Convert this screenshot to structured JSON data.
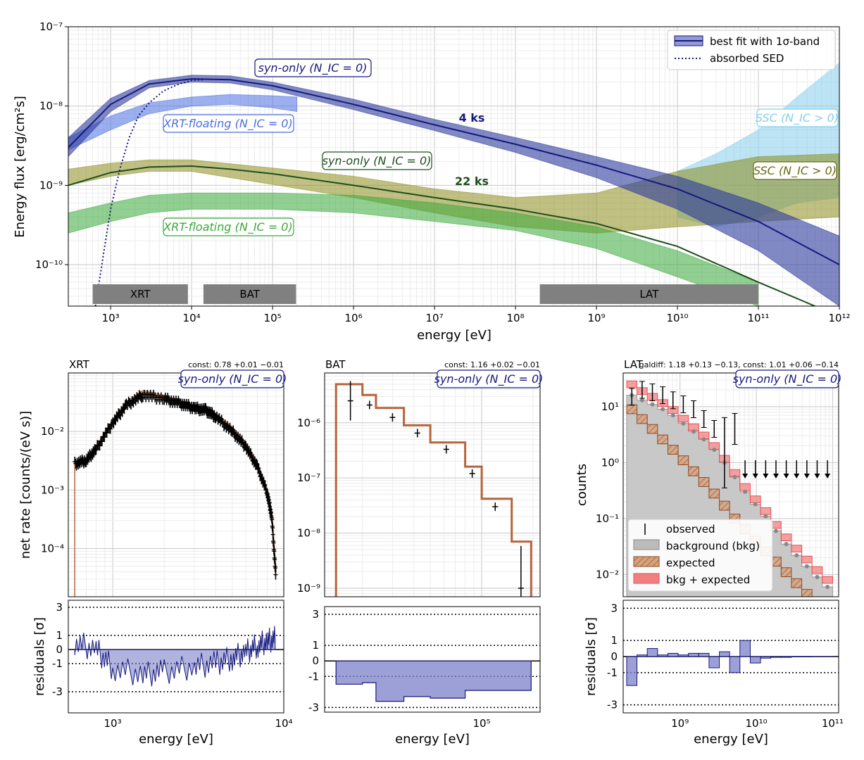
{
  "colors": {
    "navy": "#16197c",
    "blue_band": "#4a6ee0",
    "light_blue_band": "#87ceeb",
    "olive_band": "#8c8c1e",
    "green_band": "#38a838",
    "dark_green": "#1c4f1c",
    "brown": "#b5653b",
    "red_band": "#e85050",
    "grey_bkg": "#aaaaaa",
    "residual_fill": "#7b80c8"
  },
  "main": {
    "xlabel": "energy [eV]",
    "ylabel": "Energy flux [erg/cm²s]",
    "x_ticks": [
      "10³",
      "10⁴",
      "10⁵",
      "10⁶",
      "10⁷",
      "10⁸",
      "10⁹",
      "10¹⁰",
      "10¹¹",
      "10¹²"
    ],
    "y_ticks": [
      "10⁻⁷",
      "10⁻⁸",
      "10⁻⁹",
      "10⁻¹⁰"
    ],
    "legend": [
      "best fit with 1σ-band",
      "absorbed SED"
    ],
    "annotations": {
      "syn_4ks": "syn-only (N_IC = 0)",
      "xrt_4ks": "XRT-floating (N_IC = 0)",
      "label_4ks": "4 ks",
      "ssc_4ks": "SSC (N_IC > 0)",
      "syn_22ks": "syn-only (N_IC = 0)",
      "label_22ks": "22 ks",
      "ssc_22ks": "SSC (N_IC > 0)",
      "xrt_22ks": "XRT-floating (N_IC = 0)"
    },
    "instrument_bars": [
      {
        "name": "XRT",
        "range_eV": [
          600,
          9000
        ]
      },
      {
        "name": "BAT",
        "range_eV": [
          14000,
          195000
        ]
      },
      {
        "name": "LAT",
        "range_eV": [
          200000000,
          100000000000
        ]
      }
    ]
  },
  "chart_data": [
    {
      "type": "line",
      "title": "",
      "xlabel": "energy [eV]",
      "ylabel": "Energy flux [erg/cm²s]",
      "xscale": "log",
      "yscale": "log",
      "xlim": [
        300,
        1000000000000
      ],
      "ylim": [
        3e-11,
        1e-07
      ],
      "grid": true,
      "legend": "top-right",
      "series": [
        {
          "name": "syn-only 4 ks best fit",
          "x": [
            300,
            1000,
            3000,
            10000,
            30000,
            100000,
            1000000,
            10000000,
            100000000,
            1000000000,
            10000000000,
            100000000000,
            1000000000000
          ],
          "y": [
            3e-09,
            1.05e-08,
            1.9e-08,
            2.2e-08,
            2.15e-08,
            1.8e-08,
            1.05e-08,
            5.8e-09,
            3.3e-09,
            1.8e-09,
            9e-10,
            3.5e-10,
            1e-10
          ]
        },
        {
          "name": "syn-only 4 ks band",
          "x": [
            300,
            1000,
            3000,
            10000,
            30000,
            100000,
            1000000,
            10000000,
            100000000,
            1000000000,
            10000000000,
            100000000000,
            1000000000000
          ],
          "lower": [
            2.3e-09,
            8.5e-09,
            1.7e-08,
            2e-08,
            1.95e-08,
            1.6e-08,
            9e-09,
            4.9e-09,
            2.6e-09,
            1.25e-09,
            5e-10,
            1.5e-10,
            3e-11
          ],
          "upper": [
            4e-09,
            1.25e-08,
            2.1e-08,
            2.45e-08,
            2.4e-08,
            2e-08,
            1.22e-08,
            6.8e-09,
            4e-09,
            2.3e-09,
            1.3e-09,
            6e-10,
            2.3e-10
          ]
        },
        {
          "name": "absorbed SED",
          "x": [
            650,
            800,
            1000,
            1300,
            1700,
            2200,
            3000,
            4500,
            7000,
            10000,
            14000
          ],
          "y": [
            3e-11,
            1.2e-10,
            5e-10,
            1.6e-09,
            4e-09,
            7.5e-09,
            1.1e-08,
            1.55e-08,
            1.9e-08,
            2.1e-08,
            2.15e-08
          ]
        },
        {
          "name": "XRT-floating 4 ks band",
          "x": [
            300,
            1000,
            3000,
            10000,
            30000,
            100000,
            200000
          ],
          "lower": [
            2.8e-09,
            5e-09,
            8e-09,
            1e-08,
            1.05e-08,
            9.5e-09,
            8.5e-09
          ],
          "upper": [
            4e-09,
            7.5e-09,
            1.1e-08,
            1.3e-08,
            1.4e-08,
            1.35e-08,
            1.3e-08
          ]
        },
        {
          "name": "SSC 4 ks band",
          "x": [
            10000000000,
            30000000000,
            100000000000,
            300000000000,
            1000000000000
          ],
          "lower": [
            4e-10,
            3e-10,
            4e-10,
            6e-10,
            7e-10
          ],
          "upper": [
            1.5e-09,
            2.5e-09,
            5e-09,
            1.3e-08,
            3.5e-08
          ]
        },
        {
          "name": "syn-only 22 ks best fit",
          "x": [
            300,
            1000,
            3000,
            10000,
            30000,
            100000,
            1000000,
            10000000,
            100000000,
            1000000000,
            10000000000,
            100000000000,
            500000000000
          ],
          "y": [
            1e-09,
            1.45e-09,
            1.7e-09,
            1.75e-09,
            1.6e-09,
            1.4e-09,
            1e-09,
            7e-10,
            5e-10,
            3.3e-10,
            1.7e-10,
            6e-11,
            3e-11
          ]
        },
        {
          "name": "SSC 22 ks band",
          "x": [
            300,
            1000,
            3000,
            10000,
            1000000,
            10000000,
            100000000,
            1000000000,
            10000000000,
            100000000000,
            1000000000000
          ],
          "lower": [
            1e-09,
            1.3e-09,
            1.5e-09,
            1.5e-09,
            7e-10,
            4.5e-10,
            3e-10,
            2.5e-10,
            3e-10,
            3.5e-10,
            4e-10
          ],
          "upper": [
            1.6e-09,
            1.9e-09,
            2.1e-09,
            2.1e-09,
            1.3e-09,
            9e-10,
            7e-10,
            8e-10,
            1.5e-09,
            2.3e-09,
            2.5e-09
          ]
        },
        {
          "name": "XRT-floating 22 ks band",
          "x": [
            300,
            1000,
            3000,
            10000,
            100000,
            1000000,
            10000000,
            100000000,
            1000000000,
            10000000000,
            100000000000
          ],
          "lower": [
            2.5e-10,
            3.5e-10,
            4.5e-10,
            5e-10,
            5e-10,
            4.5e-10,
            3.5e-10,
            2.7e-10,
            1.6e-10,
            7e-11,
            3e-11
          ],
          "upper": [
            4.5e-10,
            6e-10,
            7.5e-10,
            8e-10,
            8e-10,
            7.5e-10,
            6e-10,
            4.5e-10,
            3e-10,
            1.5e-10,
            6e-11
          ]
        }
      ]
    },
    {
      "type": "line",
      "title": "XRT",
      "annotation": "syn-only (N_IC = 0)",
      "const_label": "const: 0.78 +0.01 −0.01",
      "xlabel": "energy [eV]",
      "ylabel": "net rate [counts/(eV s)]",
      "xscale": "log",
      "yscale": "log",
      "xlim": [
        550,
        10000
      ],
      "ylim": [
        1.5e-05,
        0.1
      ],
      "y_ticks": [
        "10⁻²",
        "10⁻³",
        "10⁻⁴"
      ],
      "x_ticks": [
        "10³",
        "10⁴"
      ],
      "series": [
        {
          "name": "observed",
          "x": [
            600,
            700,
            800,
            1000,
            1200,
            1500,
            2000,
            2500,
            3000,
            3500,
            4000,
            5000,
            6000,
            7000,
            8000,
            8500,
            9000
          ],
          "y": [
            0.0028,
            0.0032,
            0.005,
            0.014,
            0.028,
            0.042,
            0.036,
            0.03,
            0.025,
            0.023,
            0.018,
            0.01,
            0.0055,
            0.0025,
            0.0009,
            0.00035,
            3e-05
          ]
        },
        {
          "name": "model",
          "x": [
            600,
            700,
            800,
            1000,
            1200,
            1500,
            2000,
            2500,
            3000,
            3500,
            4000,
            5000,
            6000,
            7000,
            8000,
            8500,
            9000
          ],
          "y": [
            0.0028,
            0.0033,
            0.0052,
            0.015,
            0.03,
            0.046,
            0.038,
            0.031,
            0.026,
            0.024,
            0.019,
            0.011,
            0.006,
            0.0028,
            0.001,
            0.0004,
            4e-05
          ]
        }
      ],
      "residuals": {
        "ylabel": "residuals [σ]",
        "y_ticks": [
          "3",
          "1",
          "0",
          "-1",
          "-3"
        ],
        "x": [
          600,
          800,
          1000,
          1500,
          2000,
          3000,
          4000,
          5000,
          6000,
          7000,
          8000,
          9000
        ],
        "y": [
          0.5,
          0,
          -1.3,
          -1.8,
          -1.6,
          -1.2,
          -1.0,
          -0.6,
          -0.2,
          0.3,
          0.6,
          0.8
        ]
      }
    },
    {
      "type": "bar",
      "title": "BAT",
      "annotation": "syn-only (N_IC = 0)",
      "const_label": "const: 1.16 +0.02 −0.01",
      "xlabel": "energy [eV]",
      "xscale": "log",
      "yscale": "log",
      "xlim": [
        12000,
        220000
      ],
      "ylim": [
        7e-10,
        8e-06
      ],
      "y_ticks": [
        "10⁻⁶",
        "10⁻⁷",
        "10⁻⁸",
        "10⁻⁹"
      ],
      "x_ticks": [
        "10⁵"
      ],
      "bin_edges": [
        14000,
        20000,
        24000,
        35000,
        50000,
        80000,
        100000,
        150000,
        195000
      ],
      "model": [
        5e-06,
        3.2e-06,
        1.85e-06,
        9e-07,
        4.4e-07,
        1.6e-07,
        4.2e-08,
        7e-09
      ],
      "observed": {
        "x": [
          17000,
          22000,
          30000,
          42000,
          62000,
          88000,
          120000,
          170000
        ],
        "y": [
          2.5e-06,
          2.1e-06,
          1.25e-06,
          6.5e-07,
          3.3e-07,
          1.2e-07,
          3e-08,
          1e-09
        ]
      },
      "residuals": {
        "y_ticks": [
          "3",
          "1",
          "0",
          "-1",
          "-3"
        ],
        "values": [
          -1.5,
          -1.4,
          -2.6,
          -2.3,
          -2.4,
          -1.9,
          -1.9,
          -1.9
        ]
      }
    },
    {
      "type": "bar",
      "title": "LAT",
      "annotation": "syn-only (N_IC = 0)",
      "const_label": "galdiff: 1.18 +0.13 −0.13, const: 1.01 +0.06 −0.14",
      "xlabel": "energy [eV]",
      "ylabel": "counts",
      "xscale": "log",
      "yscale": "log",
      "xlim": [
        180000000,
        120000000000
      ],
      "ylim": [
        0.004,
        40
      ],
      "y_ticks": [
        "10¹",
        "10⁰",
        "10⁻¹",
        "10⁻²"
      ],
      "x_ticks": [
        "10⁹",
        "10¹⁰",
        "10¹¹"
      ],
      "legend": [
        "observed",
        "background (bkg)",
        "expected",
        "bkg + expected"
      ],
      "background": [
        16,
        13,
        11,
        9,
        7,
        5,
        3.6,
        2.6,
        1.7,
        1.0,
        0.55,
        0.3,
        0.18,
        0.11,
        0.06,
        0.035,
        0.022,
        0.014,
        0.009,
        0.006
      ],
      "expected": [
        9,
        6,
        4,
        2.6,
        1.7,
        1.1,
        0.7,
        0.45,
        0.28,
        0.17,
        0.1,
        0.065,
        0.04,
        0.026,
        0.017,
        0.011,
        0.007,
        0.0045,
        0.003,
        0.002
      ],
      "observed": [
        15,
        20,
        18,
        16,
        13,
        11,
        9,
        6,
        4,
        1.5,
        4,
        1,
        1,
        1,
        1,
        1,
        1,
        1,
        1,
        1
      ],
      "residuals": {
        "y_ticks": [
          "3",
          "1",
          "0",
          "-1",
          "-3"
        ],
        "values": [
          -1.8,
          0.1,
          0.5,
          0.1,
          0.2,
          0.1,
          0.2,
          0.2,
          -0.7,
          0.3,
          -1.0,
          1.0,
          -0.4,
          -0.1,
          -0.05,
          -0.05,
          -0.02,
          -0.02,
          -0.01,
          -0.01
        ]
      }
    }
  ]
}
